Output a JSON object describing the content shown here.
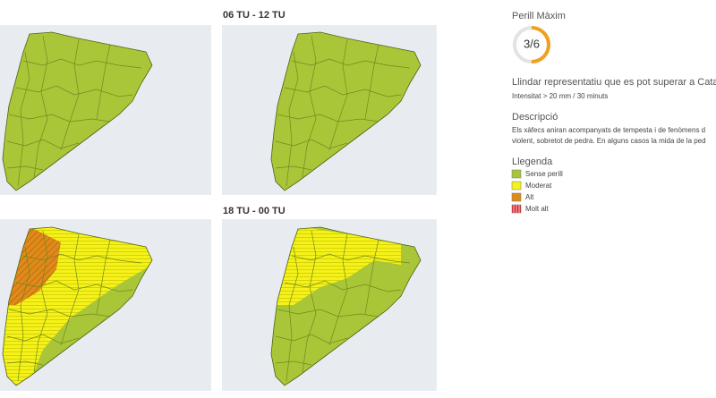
{
  "panels": [
    {
      "label": "06 TU - 12 TU"
    },
    {
      "label": "18 TU - 00 TU"
    }
  ],
  "info": {
    "max_title": "Perill Màxim",
    "gauge": {
      "label": "3/6",
      "value": 3,
      "max": 6,
      "color": "#f0a020"
    },
    "threshold_title": "Llindar representatiu que es pot superar a Catal",
    "threshold_text": "Intensitat > 20 mm / 30 minuts",
    "description_title": "Descripció",
    "description_lines": [
      "Els xàfecs aniran acompanyats de tempesta i de fenòmens d",
      "violent, sobretot de pedra. En alguns casos la mida de la ped"
    ],
    "legend_title": "Llegenda",
    "legend": [
      {
        "label": "Sense perill",
        "color": "#a9c638"
      },
      {
        "label": "Moderat",
        "color": "#f5f21a"
      },
      {
        "label": "Alt",
        "color": "#e08a1a"
      },
      {
        "label": "Molt alt",
        "color": "#e0202a"
      }
    ]
  }
}
